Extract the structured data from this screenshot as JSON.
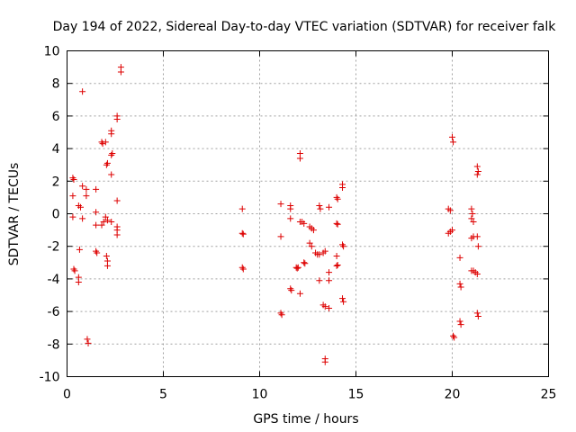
{
  "chart_data": {
    "type": "scatter",
    "title": "Day 194 of 2022, Sidereal Day-to-day VTEC variation (SDTVAR) for receiver falk",
    "xlabel": "GPS time / hours",
    "ylabel": "SDTVAR / TECUs",
    "xlim": [
      0,
      25
    ],
    "ylim": [
      -10,
      10
    ],
    "xticks": [
      0,
      5,
      10,
      15,
      20,
      25
    ],
    "xtick_labels": [
      "0",
      "5",
      "10",
      "15",
      "20",
      "25"
    ],
    "yticks": [
      -10,
      -8,
      -6,
      -4,
      -2,
      0,
      2,
      4,
      6,
      8,
      10
    ],
    "ytick_labels": [
      "-10",
      "-8",
      "-6",
      "-4",
      "-2",
      "0",
      "2",
      "4",
      "6",
      "8",
      "10"
    ],
    "grid": true,
    "marker": "plus",
    "color": "#dd0000",
    "series": [
      {
        "name": "SDTVAR",
        "points": [
          [
            0.3,
            2.2
          ],
          [
            0.35,
            2.1
          ],
          [
            0.3,
            1.1
          ],
          [
            0.3,
            -0.2
          ],
          [
            0.35,
            -3.4
          ],
          [
            0.4,
            -3.5
          ],
          [
            0.6,
            0.5
          ],
          [
            0.65,
            -2.2
          ],
          [
            0.6,
            -3.9
          ],
          [
            0.6,
            -4.2
          ],
          [
            0.7,
            0.4
          ],
          [
            0.8,
            7.5
          ],
          [
            0.8,
            1.7
          ],
          [
            0.8,
            -0.3
          ],
          [
            1.0,
            1.5
          ],
          [
            1.0,
            1.1
          ],
          [
            1.05,
            -7.7
          ],
          [
            1.1,
            -7.95
          ],
          [
            1.5,
            1.5
          ],
          [
            1.5,
            0.1
          ],
          [
            1.5,
            -0.7
          ],
          [
            1.5,
            -2.3
          ],
          [
            1.55,
            -2.4
          ],
          [
            1.8,
            4.4
          ],
          [
            1.85,
            4.3
          ],
          [
            1.8,
            -0.7
          ],
          [
            1.9,
            -0.5
          ],
          [
            2.0,
            4.4
          ],
          [
            2.05,
            3.0
          ],
          [
            2.1,
            3.1
          ],
          [
            2.0,
            -0.2
          ],
          [
            2.1,
            -0.4
          ],
          [
            2.05,
            -2.6
          ],
          [
            2.1,
            -2.9
          ],
          [
            2.1,
            -3.2
          ],
          [
            2.3,
            5.1
          ],
          [
            2.3,
            4.9
          ],
          [
            2.3,
            3.6
          ],
          [
            2.35,
            3.7
          ],
          [
            2.3,
            2.4
          ],
          [
            2.3,
            -0.5
          ],
          [
            2.6,
            6.0
          ],
          [
            2.6,
            5.8
          ],
          [
            2.6,
            0.8
          ],
          [
            2.6,
            -0.8
          ],
          [
            2.6,
            -1.0
          ],
          [
            2.6,
            -1.3
          ],
          [
            2.8,
            9.0
          ],
          [
            2.8,
            8.7
          ],
          [
            9.1,
            0.3
          ],
          [
            9.1,
            -1.2
          ],
          [
            9.15,
            -1.25
          ],
          [
            9.1,
            -3.3
          ],
          [
            9.15,
            -3.4
          ],
          [
            11.1,
            0.6
          ],
          [
            11.1,
            -1.4
          ],
          [
            11.1,
            -6.1
          ],
          [
            11.15,
            -6.2
          ],
          [
            11.6,
            0.5
          ],
          [
            11.6,
            0.3
          ],
          [
            11.6,
            -0.3
          ],
          [
            11.6,
            -4.6
          ],
          [
            11.65,
            -4.7
          ],
          [
            11.9,
            -3.3
          ],
          [
            11.95,
            -3.35
          ],
          [
            12.0,
            -3.3
          ],
          [
            12.1,
            3.7
          ],
          [
            12.1,
            3.4
          ],
          [
            12.1,
            -0.5
          ],
          [
            12.2,
            -0.5
          ],
          [
            12.3,
            -0.6
          ],
          [
            12.1,
            -4.9
          ],
          [
            12.3,
            -3.0
          ],
          [
            12.35,
            -3.05
          ],
          [
            12.6,
            -0.8
          ],
          [
            12.7,
            -0.9
          ],
          [
            12.8,
            -1.0
          ],
          [
            12.6,
            -1.8
          ],
          [
            12.7,
            -2.0
          ],
          [
            12.9,
            -2.4
          ],
          [
            13.0,
            -2.5
          ],
          [
            13.1,
            -2.5
          ],
          [
            13.1,
            -4.1
          ],
          [
            13.1,
            0.5
          ],
          [
            13.15,
            0.3
          ],
          [
            13.3,
            -2.4
          ],
          [
            13.4,
            -2.3
          ],
          [
            13.3,
            -5.6
          ],
          [
            13.4,
            -5.7
          ],
          [
            13.6,
            -5.8
          ],
          [
            13.4,
            -8.9
          ],
          [
            13.4,
            -9.1
          ],
          [
            13.6,
            0.4
          ],
          [
            13.6,
            -3.6
          ],
          [
            13.6,
            -4.1
          ],
          [
            14.0,
            1.0
          ],
          [
            14.05,
            0.9
          ],
          [
            14.0,
            -0.6
          ],
          [
            14.05,
            -0.65
          ],
          [
            14.0,
            -2.6
          ],
          [
            14.0,
            -3.2
          ],
          [
            14.05,
            -3.15
          ],
          [
            14.3,
            1.8
          ],
          [
            14.3,
            1.6
          ],
          [
            14.3,
            -1.9
          ],
          [
            14.35,
            -2.0
          ],
          [
            14.3,
            -5.2
          ],
          [
            14.35,
            -5.4
          ],
          [
            19.8,
            0.3
          ],
          [
            19.9,
            0.2
          ],
          [
            19.8,
            -1.2
          ],
          [
            19.9,
            -1.1
          ],
          [
            20.0,
            4.7
          ],
          [
            20.05,
            4.4
          ],
          [
            20.0,
            -1.0
          ],
          [
            20.05,
            -7.5
          ],
          [
            20.1,
            -7.6
          ],
          [
            20.4,
            -2.7
          ],
          [
            20.4,
            -4.3
          ],
          [
            20.45,
            -4.5
          ],
          [
            20.4,
            -6.6
          ],
          [
            20.45,
            -6.8
          ],
          [
            21.0,
            0.3
          ],
          [
            21.05,
            0.0
          ],
          [
            21.0,
            -0.3
          ],
          [
            21.1,
            -0.5
          ],
          [
            21.0,
            -1.5
          ],
          [
            21.1,
            -1.4
          ],
          [
            21.0,
            -3.5
          ],
          [
            21.1,
            -3.5
          ],
          [
            21.2,
            -3.6
          ],
          [
            21.3,
            2.9
          ],
          [
            21.35,
            2.6
          ],
          [
            21.3,
            2.4
          ],
          [
            21.3,
            -1.4
          ],
          [
            21.35,
            -2.0
          ],
          [
            21.3,
            -3.7
          ],
          [
            21.3,
            -6.1
          ],
          [
            21.35,
            -6.3
          ]
        ]
      }
    ]
  }
}
